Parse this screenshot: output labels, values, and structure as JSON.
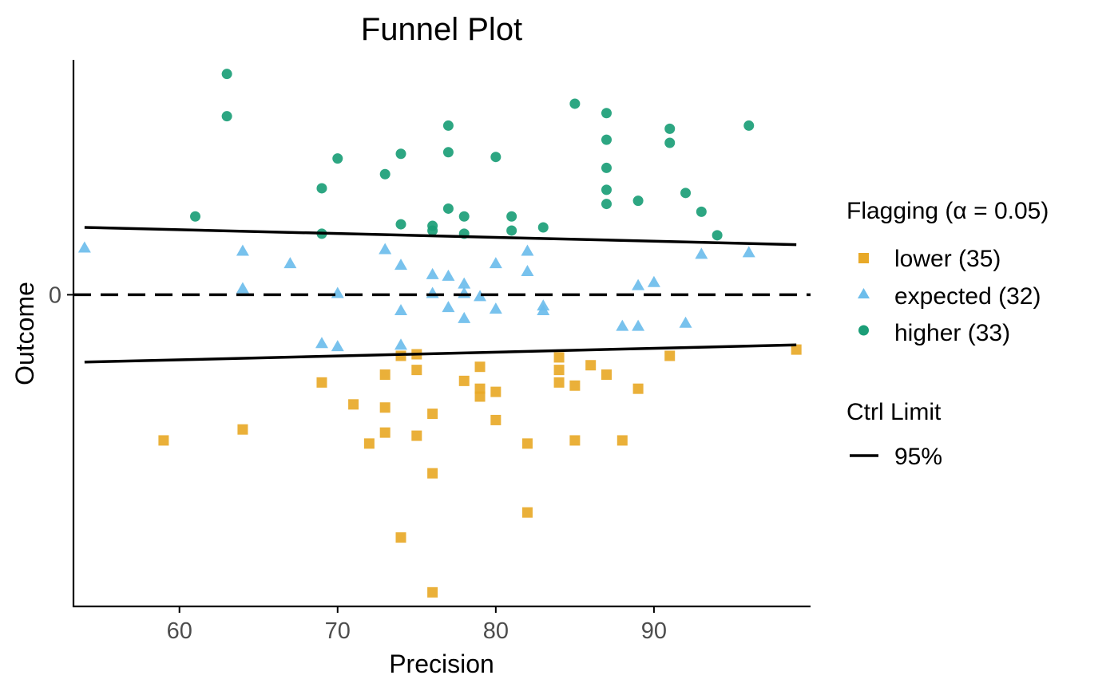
{
  "chart_data": {
    "type": "scatter",
    "title": "Funnel Plot",
    "xlabel": "Precision",
    "ylabel": "Outcome",
    "xlim": [
      53.3,
      99.9
    ],
    "ylim": [
      -0.199,
      0.15
    ],
    "x_ticks": [
      60,
      70,
      80,
      90
    ],
    "x_tick_labels": [
      "60",
      "70",
      "80",
      "90"
    ],
    "y_ticks": [
      0
    ],
    "y_tick_labels": [
      "0"
    ],
    "grid": false,
    "reference_line": {
      "y": 0,
      "style": "dashed"
    },
    "control_limits": {
      "name": "95%",
      "upper": [
        {
          "x": 54,
          "y": 0.043
        },
        {
          "x": 99,
          "y": 0.032
        }
      ],
      "lower": [
        {
          "x": 54,
          "y": -0.043
        },
        {
          "x": 99,
          "y": -0.032
        }
      ]
    },
    "legend": {
      "position": "right",
      "flag_title_main": "Flagging (",
      "flag_title_alpha": "α = 0.05",
      "flag_title_close": ")",
      "ctrl_title": "Ctrl Limit",
      "ctrl_label": "95%"
    },
    "series": [
      {
        "name": "lower (35)",
        "marker": "square",
        "color": "#E8A928",
        "points": [
          [
            59,
            -0.093
          ],
          [
            64,
            -0.086
          ],
          [
            69,
            -0.056
          ],
          [
            71,
            -0.07
          ],
          [
            72,
            -0.095
          ],
          [
            73,
            -0.051
          ],
          [
            73,
            -0.072
          ],
          [
            73,
            -0.088
          ],
          [
            74,
            -0.039
          ],
          [
            74,
            -0.155
          ],
          [
            75,
            -0.038
          ],
          [
            75,
            -0.048
          ],
          [
            75,
            -0.09
          ],
          [
            76,
            -0.076
          ],
          [
            76,
            -0.114
          ],
          [
            76,
            -0.19
          ],
          [
            78,
            -0.055
          ],
          [
            79,
            -0.046
          ],
          [
            79,
            -0.06
          ],
          [
            79,
            -0.065
          ],
          [
            80,
            -0.062
          ],
          [
            80,
            -0.08
          ],
          [
            82,
            -0.095
          ],
          [
            82,
            -0.139
          ],
          [
            84,
            -0.04
          ],
          [
            84,
            -0.048
          ],
          [
            84,
            -0.056
          ],
          [
            85,
            -0.058
          ],
          [
            85,
            -0.093
          ],
          [
            86,
            -0.045
          ],
          [
            87,
            -0.051
          ],
          [
            88,
            -0.093
          ],
          [
            89,
            -0.06
          ],
          [
            91,
            -0.039
          ],
          [
            99,
            -0.035
          ]
        ]
      },
      {
        "name": "expected (32)",
        "marker": "triangle",
        "color": "#6CBDEB",
        "points": [
          [
            54,
            0.03
          ],
          [
            64,
            0.028
          ],
          [
            64,
            0.004
          ],
          [
            67,
            0.02
          ],
          [
            69,
            -0.031
          ],
          [
            70,
            0.001
          ],
          [
            70,
            -0.033
          ],
          [
            73,
            0.029
          ],
          [
            74,
            0.019
          ],
          [
            74,
            -0.01
          ],
          [
            74,
            -0.032
          ],
          [
            76,
            0.013
          ],
          [
            76,
            0.001
          ],
          [
            77,
            0.012
          ],
          [
            77,
            -0.008
          ],
          [
            78,
            0.007
          ],
          [
            78,
            0.001
          ],
          [
            78,
            -0.015
          ],
          [
            79,
            -0.001
          ],
          [
            80,
            0.02
          ],
          [
            80,
            -0.009
          ],
          [
            82,
            0.028
          ],
          [
            82,
            0.015
          ],
          [
            83,
            -0.007
          ],
          [
            83,
            -0.01
          ],
          [
            88,
            -0.02
          ],
          [
            89,
            0.006
          ],
          [
            89,
            -0.02
          ],
          [
            90,
            0.008
          ],
          [
            92,
            -0.018
          ],
          [
            93,
            0.026
          ],
          [
            96,
            0.027
          ]
        ]
      },
      {
        "name": "higher (33)",
        "marker": "circle",
        "color": "#1B9E77",
        "points": [
          [
            61,
            0.05
          ],
          [
            63,
            0.141
          ],
          [
            63,
            0.114
          ],
          [
            69,
            0.068
          ],
          [
            69,
            0.039
          ],
          [
            70,
            0.087
          ],
          [
            73,
            0.077
          ],
          [
            74,
            0.09
          ],
          [
            74,
            0.045
          ],
          [
            76,
            0.044
          ],
          [
            76,
            0.041
          ],
          [
            77,
            0.108
          ],
          [
            77,
            0.091
          ],
          [
            77,
            0.055
          ],
          [
            78,
            0.05
          ],
          [
            78,
            0.039
          ],
          [
            80,
            0.088
          ],
          [
            81,
            0.05
          ],
          [
            81,
            0.041
          ],
          [
            83,
            0.043
          ],
          [
            85,
            0.122
          ],
          [
            87,
            0.116
          ],
          [
            87,
            0.099
          ],
          [
            87,
            0.081
          ],
          [
            87,
            0.067
          ],
          [
            87,
            0.058
          ],
          [
            89,
            0.06
          ],
          [
            91,
            0.106
          ],
          [
            91,
            0.097
          ],
          [
            92,
            0.065
          ],
          [
            93,
            0.053
          ],
          [
            94,
            0.038
          ],
          [
            96,
            0.108
          ]
        ]
      }
    ]
  }
}
